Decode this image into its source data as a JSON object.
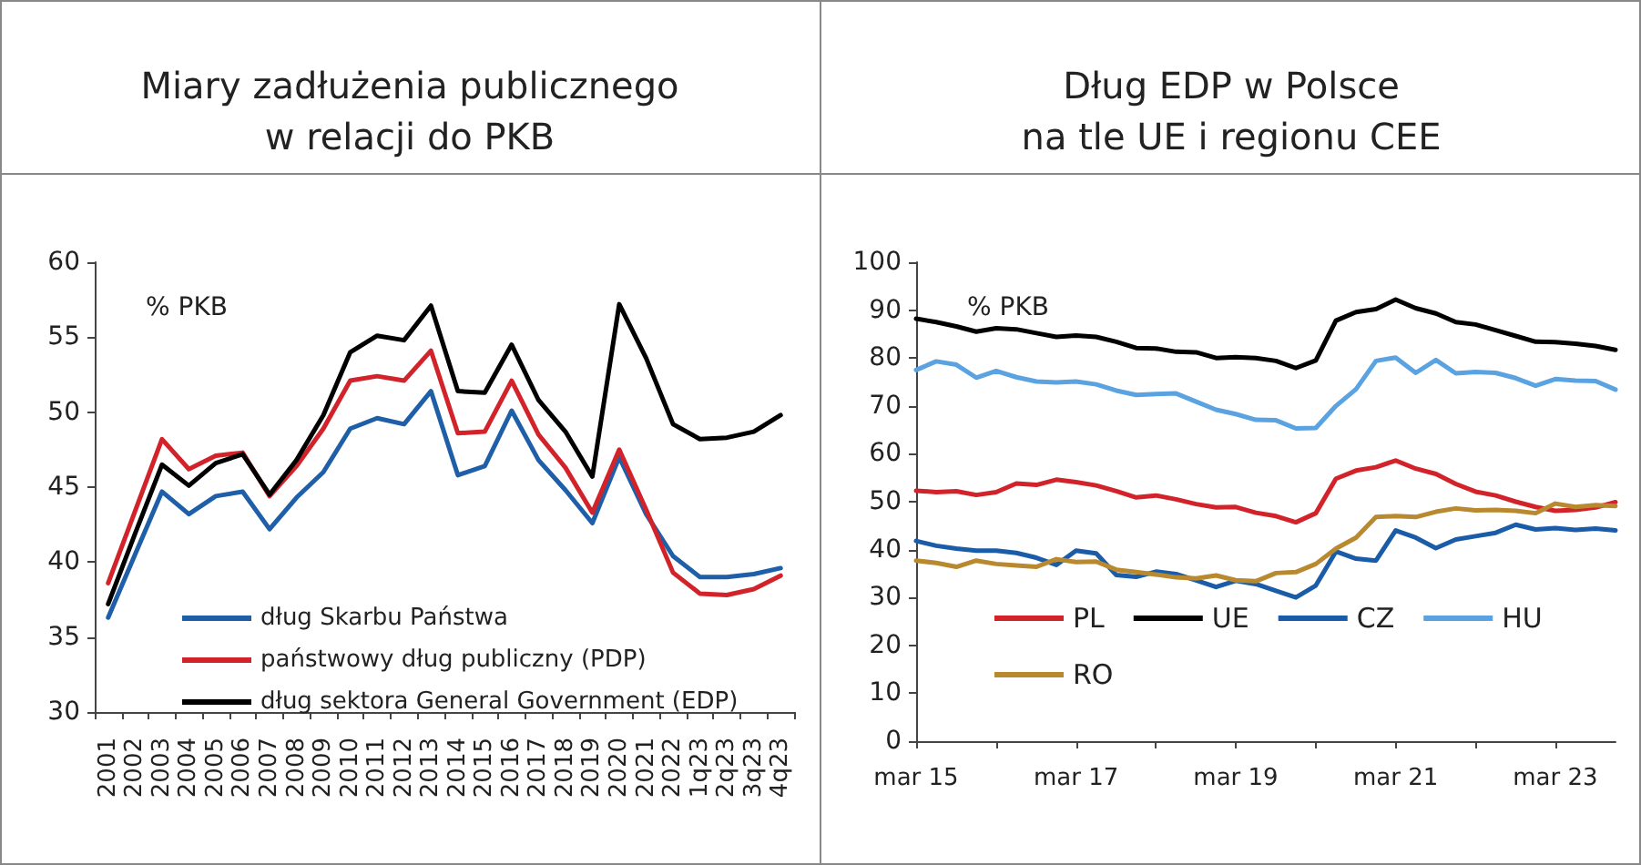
{
  "chart_data": [
    {
      "type": "line",
      "title": "Miary zadłużenia publicznego\nw relacji do PKB",
      "ylabel": "% PKB",
      "categories": [
        "2001",
        "2002",
        "2003",
        "2004",
        "2005",
        "2006",
        "2007",
        "2008",
        "2009",
        "2010",
        "2011",
        "2012",
        "2013",
        "2014",
        "2015",
        "2016",
        "2017",
        "2018",
        "2019",
        "2020",
        "2021",
        "2022",
        "1q23",
        "2q23",
        "3q23",
        "4q23"
      ],
      "series": [
        {
          "name": "dług Skarbu Państwa",
          "color": "#1f5fa8",
          "values": [
            36.3,
            40.5,
            44.7,
            43.2,
            44.4,
            44.7,
            42.2,
            44.3,
            46.0,
            48.9,
            49.6,
            49.2,
            51.4,
            45.8,
            46.4,
            50.1,
            46.8,
            44.8,
            42.6,
            47.0,
            43.2,
            40.4,
            39.0,
            39.0,
            39.2,
            39.6
          ]
        },
        {
          "name": "państwowy dług publiczny (PDP)",
          "color": "#d2232a",
          "values": [
            38.6,
            43.4,
            48.2,
            46.2,
            47.1,
            47.3,
            44.4,
            46.4,
            48.9,
            52.1,
            52.4,
            52.1,
            54.1,
            48.6,
            48.7,
            52.1,
            48.5,
            46.3,
            43.3,
            47.5,
            43.5,
            39.3,
            37.9,
            37.8,
            38.2,
            39.1
          ]
        },
        {
          "name": "dług sektora General Government (EDP)",
          "color": "#000000",
          "values": [
            37.2,
            41.9,
            46.5,
            45.1,
            46.6,
            47.2,
            44.5,
            46.8,
            49.8,
            54.0,
            55.1,
            54.8,
            57.1,
            51.4,
            51.3,
            54.5,
            50.8,
            48.7,
            45.7,
            57.2,
            53.6,
            49.2,
            48.2,
            48.3,
            48.7,
            49.8
          ]
        }
      ],
      "ylim": [
        30,
        60
      ],
      "yticks": [
        30,
        35,
        40,
        45,
        50,
        55,
        60
      ],
      "grid": false,
      "legend": "bottom left"
    },
    {
      "type": "line",
      "title": "Dług EDP w Polsce\nna tle UE i regionu CEE",
      "ylabel": "% PKB",
      "x": [
        "2015-03",
        "2015-06",
        "2015-09",
        "2015-12",
        "2016-03",
        "2016-06",
        "2016-09",
        "2016-12",
        "2017-03",
        "2017-06",
        "2017-09",
        "2017-12",
        "2018-03",
        "2018-06",
        "2018-09",
        "2018-12",
        "2019-03",
        "2019-06",
        "2019-09",
        "2019-12",
        "2020-03",
        "2020-06",
        "2020-09",
        "2020-12",
        "2021-03",
        "2021-06",
        "2021-09",
        "2021-12",
        "2022-03",
        "2022-06",
        "2022-09",
        "2022-12",
        "2023-03",
        "2023-06",
        "2023-09",
        "2023-12"
      ],
      "series": [
        {
          "name": "PL",
          "color": "#d2232a",
          "values": [
            52.3,
            52.0,
            52.2,
            51.4,
            52.0,
            53.8,
            53.5,
            54.6,
            54.1,
            53.4,
            52.2,
            50.9,
            51.3,
            50.5,
            49.5,
            48.8,
            48.9,
            47.7,
            47.0,
            45.7,
            47.6,
            54.8,
            56.5,
            57.2,
            58.6,
            56.9,
            55.8,
            53.7,
            52.1,
            51.3,
            50.0,
            48.9,
            48.1,
            48.3,
            48.8,
            49.9
          ]
        },
        {
          "name": "UE",
          "color": "#000000",
          "values": [
            88.2,
            87.5,
            86.6,
            85.5,
            86.2,
            86.0,
            85.2,
            84.4,
            84.7,
            84.4,
            83.4,
            82.1,
            82.0,
            81.3,
            81.2,
            80.0,
            80.2,
            80.0,
            79.4,
            77.9,
            79.5,
            87.8,
            89.6,
            90.2,
            92.2,
            90.4,
            89.3,
            87.5,
            87.0,
            85.8,
            84.6,
            83.4,
            83.3,
            83.0,
            82.5,
            81.7
          ]
        },
        {
          "name": "CZ",
          "color": "#1a5ca8",
          "values": [
            41.8,
            40.8,
            40.2,
            39.8,
            39.8,
            39.3,
            38.3,
            36.8,
            39.8,
            39.2,
            34.7,
            34.3,
            35.4,
            34.9,
            33.6,
            32.2,
            33.5,
            32.8,
            31.4,
            30.0,
            32.5,
            39.6,
            38.1,
            37.7,
            44.0,
            42.5,
            40.3,
            42.1,
            42.8,
            43.5,
            45.2,
            44.2,
            44.5,
            44.1,
            44.4,
            44.0
          ]
        },
        {
          "name": "HU",
          "color": "#5ba3e0",
          "values": [
            77.5,
            79.3,
            78.6,
            75.9,
            77.3,
            76.0,
            75.1,
            74.9,
            75.1,
            74.5,
            73.2,
            72.3,
            72.5,
            72.6,
            70.9,
            69.2,
            68.3,
            67.1,
            67.0,
            65.3,
            65.4,
            70.0,
            73.5,
            79.4,
            80.1,
            76.9,
            79.6,
            76.8,
            77.1,
            76.9,
            75.8,
            74.2,
            75.6,
            75.3,
            75.2,
            73.4
          ]
        },
        {
          "name": "RO",
          "color": "#b8892e",
          "values": [
            37.7,
            37.2,
            36.4,
            37.7,
            37.0,
            36.7,
            36.4,
            38.0,
            37.4,
            37.5,
            35.8,
            35.3,
            34.8,
            34.2,
            34.0,
            34.6,
            33.6,
            33.4,
            35.1,
            35.3,
            37.0,
            40.2,
            42.5,
            46.8,
            47.0,
            46.8,
            47.9,
            48.6,
            48.2,
            48.3,
            48.1,
            47.6,
            49.6,
            48.9,
            49.3,
            49.1
          ]
        }
      ],
      "xlim": [
        "2015-03",
        "2023-12"
      ],
      "xticks": [
        {
          "value": "2015-03",
          "label": "mar 15"
        },
        {
          "value": "2016-03",
          "label": null
        },
        {
          "value": "2017-03",
          "label": "mar 17"
        },
        {
          "value": "2018-03",
          "label": null
        },
        {
          "value": "2019-03",
          "label": "mar 19"
        },
        {
          "value": "2020-03",
          "label": null
        },
        {
          "value": "2021-03",
          "label": "mar 21"
        },
        {
          "value": "2022-03",
          "label": null
        },
        {
          "value": "2023-03",
          "label": "mar 23"
        }
      ],
      "ylim": [
        0,
        100
      ],
      "yticks": [
        0,
        10,
        20,
        30,
        40,
        50,
        60,
        70,
        80,
        90,
        100
      ],
      "grid": false,
      "legend": "bottom"
    }
  ]
}
